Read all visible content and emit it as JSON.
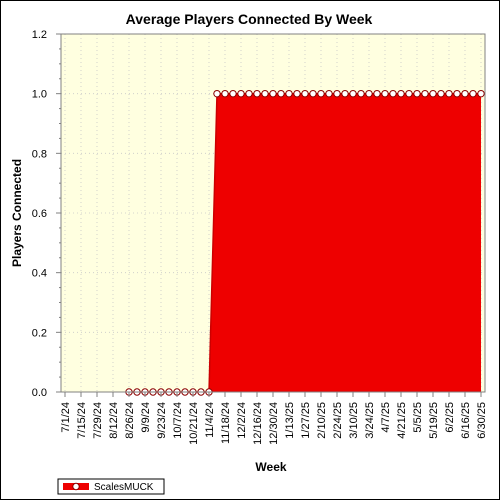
{
  "chart_data": {
    "type": "area",
    "title": "Average Players Connected By Week",
    "xlabel": "Week",
    "ylabel": "Players Connected",
    "ylim": [
      0,
      1.2
    ],
    "yticks": [
      0.0,
      0.2,
      0.4,
      0.6,
      0.8,
      1.0,
      1.2
    ],
    "ytick_labels": [
      "0.0",
      "0.2",
      "0.4",
      "0.6",
      "0.8",
      "1.0",
      "1.2"
    ],
    "x_tick_labels": [
      "7/1/24",
      "7/15/24",
      "7/29/24",
      "8/12/24",
      "8/26/24",
      "9/9/24",
      "9/23/24",
      "10/7/24",
      "10/21/24",
      "11/4/24",
      "11/18/24",
      "12/2/24",
      "12/16/24",
      "12/30/24",
      "1/13/25",
      "1/27/25",
      "2/10/25",
      "2/24/25",
      "3/10/25",
      "3/24/25",
      "4/7/25",
      "4/21/25",
      "5/5/25",
      "5/19/25",
      "6/2/25",
      "6/16/25",
      "6/30/25"
    ],
    "xlim": [
      "2024-07-01",
      "2025-06-30"
    ],
    "grid": true,
    "legend_position": "bottom-left",
    "background_color": "#ffffe0",
    "series": [
      {
        "name": "ScalesMUCK",
        "color": "#ee0000",
        "marker": "circle",
        "x": [
          "2024-08-26",
          "2024-09-02",
          "2024-09-09",
          "2024-09-16",
          "2024-09-23",
          "2024-09-30",
          "2024-10-07",
          "2024-10-14",
          "2024-10-21",
          "2024-10-28",
          "2024-11-04",
          "2024-11-11",
          "2024-11-18",
          "2024-11-25",
          "2024-12-02",
          "2024-12-09",
          "2024-12-16",
          "2024-12-23",
          "2024-12-30",
          "2025-01-06",
          "2025-01-13",
          "2025-01-20",
          "2025-01-27",
          "2025-02-03",
          "2025-02-10",
          "2025-02-17",
          "2025-02-24",
          "2025-03-03",
          "2025-03-10",
          "2025-03-17",
          "2025-03-24",
          "2025-03-31",
          "2025-04-07",
          "2025-04-14",
          "2025-04-21",
          "2025-04-28",
          "2025-05-05",
          "2025-05-12",
          "2025-05-19",
          "2025-05-26",
          "2025-06-02",
          "2025-06-09",
          "2025-06-16",
          "2025-06-23",
          "2025-06-30"
        ],
        "values": [
          0,
          0,
          0,
          0,
          0,
          0,
          0,
          0,
          0,
          0,
          0,
          1,
          1,
          1,
          1,
          1,
          1,
          1,
          1,
          1,
          1,
          1,
          1,
          1,
          1,
          1,
          1,
          1,
          1,
          1,
          1,
          1,
          1,
          1,
          1,
          1,
          1,
          1,
          1,
          1,
          1,
          1,
          1,
          1,
          1
        ]
      }
    ]
  }
}
